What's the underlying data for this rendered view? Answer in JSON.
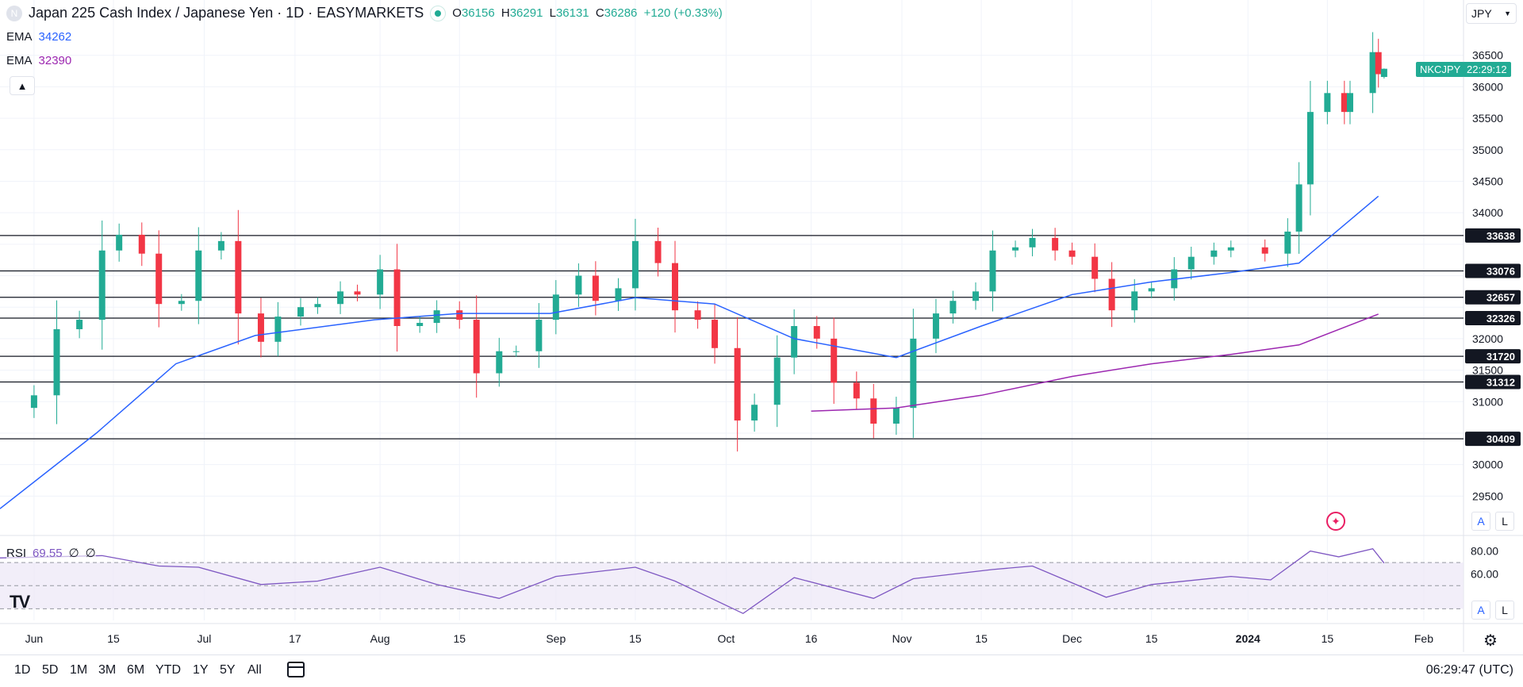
{
  "header": {
    "title": "Japan 225 Cash Index / Japanese Yen · 1D · EASYMARKETS",
    "open_label": "O",
    "open": "36156",
    "high_label": "H",
    "high": "36291",
    "low_label": "L",
    "low": "36131",
    "close_label": "C",
    "close": "36286",
    "change": "+120 (+0.33%)"
  },
  "indicators": {
    "ema_fast": {
      "label": "EMA",
      "value": "34262",
      "color": "#2962ff"
    },
    "ema_slow": {
      "label": "EMA",
      "value": "32390",
      "color": "#9c27b0"
    },
    "rsi": {
      "label": "RSI",
      "value": "69.55",
      "extra1": "∅",
      "extra2": "∅",
      "color": "#7e57c2"
    }
  },
  "controls": {
    "currency": "JPY",
    "ticker_tag": "NKCJPY",
    "price_tag": "22:29:12",
    "scale_auto": "A",
    "scale_log": "L",
    "clock": "06:29:47 (UTC)",
    "ranges": [
      "1D",
      "5D",
      "1M",
      "3M",
      "6M",
      "YTD",
      "1Y",
      "5Y",
      "All"
    ],
    "collapse_icon": "chevron-up-icon",
    "calendar_icon": "calendar-icon",
    "settings_icon": "gear-icon",
    "logo_text": "TV"
  },
  "colors": {
    "up": "#22ab94",
    "down": "#f23645",
    "grid": "#f0f3fa",
    "level_line": "#131722",
    "rsi_band": "#ede7f6"
  },
  "chart_data": {
    "type": "candlestick",
    "interval": "1D",
    "y_axis": {
      "range": [
        29000,
        37000
      ],
      "ticks": [
        29500,
        30000,
        30500,
        31000,
        31500,
        32000,
        32500,
        33000,
        33500,
        34000,
        34500,
        35000,
        35500,
        36000,
        36500
      ],
      "tick_labels": [
        "29500",
        "30000",
        "",
        "31000",
        "31500",
        "32000",
        "",
        "",
        "",
        "34000",
        "34500",
        "35000",
        "35500",
        "36000",
        "36500"
      ]
    },
    "x_axis": {
      "start": "2023-05-26",
      "end": "2024-02-08",
      "ticks": [
        {
          "date": "2023-06-01",
          "label": "Jun"
        },
        {
          "date": "2023-06-15",
          "label": "15"
        },
        {
          "date": "2023-07-01",
          "label": "Jul"
        },
        {
          "date": "2023-07-17",
          "label": "17"
        },
        {
          "date": "2023-08-01",
          "label": "Aug"
        },
        {
          "date": "2023-08-15",
          "label": "15"
        },
        {
          "date": "2023-09-01",
          "label": "Sep"
        },
        {
          "date": "2023-09-15",
          "label": "15"
        },
        {
          "date": "2023-10-01",
          "label": "Oct"
        },
        {
          "date": "2023-10-16",
          "label": "16"
        },
        {
          "date": "2023-11-01",
          "label": "Nov"
        },
        {
          "date": "2023-11-15",
          "label": "15"
        },
        {
          "date": "2023-12-01",
          "label": "Dec"
        },
        {
          "date": "2023-12-15",
          "label": "15"
        },
        {
          "date": "2024-01-01",
          "label": "2024"
        },
        {
          "date": "2024-01-15",
          "label": "15"
        },
        {
          "date": "2024-02-01",
          "label": "Feb"
        }
      ]
    },
    "levels": [
      {
        "value": 33638,
        "label": "33638"
      },
      {
        "value": 33076,
        "label": "33076"
      },
      {
        "value": 32657,
        "label": "32657"
      },
      {
        "value": 32326,
        "label": "32326"
      },
      {
        "value": 31720,
        "label": "31720"
      },
      {
        "value": 31312,
        "label": "31312"
      },
      {
        "value": 30409,
        "label": "30409"
      }
    ],
    "close_series": [
      [
        "2023-05-26",
        30900
      ],
      [
        "2023-06-01",
        31100
      ],
      [
        "2023-06-05",
        32150
      ],
      [
        "2023-06-09",
        32300
      ],
      [
        "2023-06-13",
        33400
      ],
      [
        "2023-06-16",
        33650
      ],
      [
        "2023-06-20",
        33350
      ],
      [
        "2023-06-23",
        32550
      ],
      [
        "2023-06-27",
        32600
      ],
      [
        "2023-06-30",
        33400
      ],
      [
        "2023-07-04",
        33550
      ],
      [
        "2023-07-07",
        32400
      ],
      [
        "2023-07-11",
        31950
      ],
      [
        "2023-07-14",
        32350
      ],
      [
        "2023-07-18",
        32500
      ],
      [
        "2023-07-21",
        32550
      ],
      [
        "2023-07-25",
        32750
      ],
      [
        "2023-07-28",
        32700
      ],
      [
        "2023-08-01",
        33100
      ],
      [
        "2023-08-04",
        32200
      ],
      [
        "2023-08-08",
        32250
      ],
      [
        "2023-08-11",
        32450
      ],
      [
        "2023-08-15",
        32300
      ],
      [
        "2023-08-18",
        31450
      ],
      [
        "2023-08-22",
        31800
      ],
      [
        "2023-08-25",
        31800
      ],
      [
        "2023-08-29",
        32300
      ],
      [
        "2023-09-01",
        32700
      ],
      [
        "2023-09-05",
        33000
      ],
      [
        "2023-09-08",
        32600
      ],
      [
        "2023-09-12",
        32800
      ],
      [
        "2023-09-15",
        33550
      ],
      [
        "2023-09-19",
        33200
      ],
      [
        "2023-09-22",
        32450
      ],
      [
        "2023-09-26",
        32300
      ],
      [
        "2023-09-29",
        31850
      ],
      [
        "2023-10-03",
        30700
      ],
      [
        "2023-10-06",
        30950
      ],
      [
        "2023-10-10",
        31700
      ],
      [
        "2023-10-13",
        32200
      ],
      [
        "2023-10-17",
        32000
      ],
      [
        "2023-10-20",
        31300
      ],
      [
        "2023-10-24",
        31050
      ],
      [
        "2023-10-27",
        30650
      ],
      [
        "2023-10-31",
        30900
      ],
      [
        "2023-11-03",
        32000
      ],
      [
        "2023-11-07",
        32400
      ],
      [
        "2023-11-10",
        32600
      ],
      [
        "2023-11-14",
        32750
      ],
      [
        "2023-11-17",
        33400
      ],
      [
        "2023-11-21",
        33450
      ],
      [
        "2023-11-24",
        33600
      ],
      [
        "2023-11-28",
        33400
      ],
      [
        "2023-12-01",
        33300
      ],
      [
        "2023-12-05",
        32950
      ],
      [
        "2023-12-08",
        32450
      ],
      [
        "2023-12-12",
        32750
      ],
      [
        "2023-12-15",
        32800
      ],
      [
        "2023-12-19",
        33100
      ],
      [
        "2023-12-22",
        33300
      ],
      [
        "2023-12-26",
        33400
      ],
      [
        "2023-12-29",
        33450
      ],
      [
        "2024-01-04",
        33350
      ],
      [
        "2024-01-08",
        33700
      ],
      [
        "2024-01-10",
        34450
      ],
      [
        "2024-01-12",
        35600
      ],
      [
        "2024-01-15",
        35900
      ],
      [
        "2024-01-18",
        35600
      ],
      [
        "2024-01-19",
        35900
      ],
      [
        "2024-01-23",
        36550
      ],
      [
        "2024-01-24",
        36200
      ]
    ],
    "last_candle": {
      "date": "2024-01-25",
      "open": 36156,
      "high": 36291,
      "low": 36131,
      "close": 36286
    },
    "ema_fast_series": [
      [
        "2023-05-26",
        29300
      ],
      [
        "2023-06-12",
        30500
      ],
      [
        "2023-06-26",
        31600
      ],
      [
        "2023-07-10",
        32050
      ],
      [
        "2023-07-31",
        32300
      ],
      [
        "2023-08-15",
        32400
      ],
      [
        "2023-08-31",
        32400
      ],
      [
        "2023-09-15",
        32650
      ],
      [
        "2023-09-29",
        32550
      ],
      [
        "2023-10-13",
        32000
      ],
      [
        "2023-10-31",
        31700
      ],
      [
        "2023-11-15",
        32200
      ],
      [
        "2023-12-01",
        32700
      ],
      [
        "2023-12-15",
        32900
      ],
      [
        "2023-12-29",
        33050
      ],
      [
        "2024-01-10",
        33200
      ],
      [
        "2024-01-24",
        34262
      ]
    ],
    "ema_slow_series": [
      [
        "2023-10-16",
        30850
      ],
      [
        "2023-10-31",
        30900
      ],
      [
        "2023-11-15",
        31100
      ],
      [
        "2023-12-01",
        31400
      ],
      [
        "2023-12-15",
        31600
      ],
      [
        "2023-12-29",
        31750
      ],
      [
        "2024-01-10",
        31900
      ],
      [
        "2024-01-24",
        32390
      ]
    ],
    "rsi": {
      "range": [
        20,
        90
      ],
      "ticks": [
        80,
        60
      ],
      "tick_labels": [
        "80.00",
        "60.00"
      ],
      "bands": [
        30,
        70
      ],
      "series": [
        [
          "2023-05-26",
          74
        ],
        [
          "2023-06-13",
          76
        ],
        [
          "2023-06-23",
          67
        ],
        [
          "2023-06-30",
          66
        ],
        [
          "2023-07-11",
          51
        ],
        [
          "2023-07-21",
          54
        ],
        [
          "2023-08-01",
          66
        ],
        [
          "2023-08-11",
          51
        ],
        [
          "2023-08-22",
          39
        ],
        [
          "2023-09-01",
          58
        ],
        [
          "2023-09-15",
          66
        ],
        [
          "2023-09-22",
          54
        ],
        [
          "2023-10-04",
          26
        ],
        [
          "2023-10-13",
          57
        ],
        [
          "2023-10-27",
          39
        ],
        [
          "2023-11-03",
          56
        ],
        [
          "2023-11-17",
          64
        ],
        [
          "2023-11-24",
          67
        ],
        [
          "2023-12-07",
          40
        ],
        [
          "2023-12-15",
          51
        ],
        [
          "2023-12-29",
          58
        ],
        [
          "2024-01-05",
          55
        ],
        [
          "2024-01-12",
          80
        ],
        [
          "2024-01-17",
          75
        ],
        [
          "2024-01-23",
          82
        ],
        [
          "2024-01-25",
          69.55
        ]
      ]
    }
  }
}
